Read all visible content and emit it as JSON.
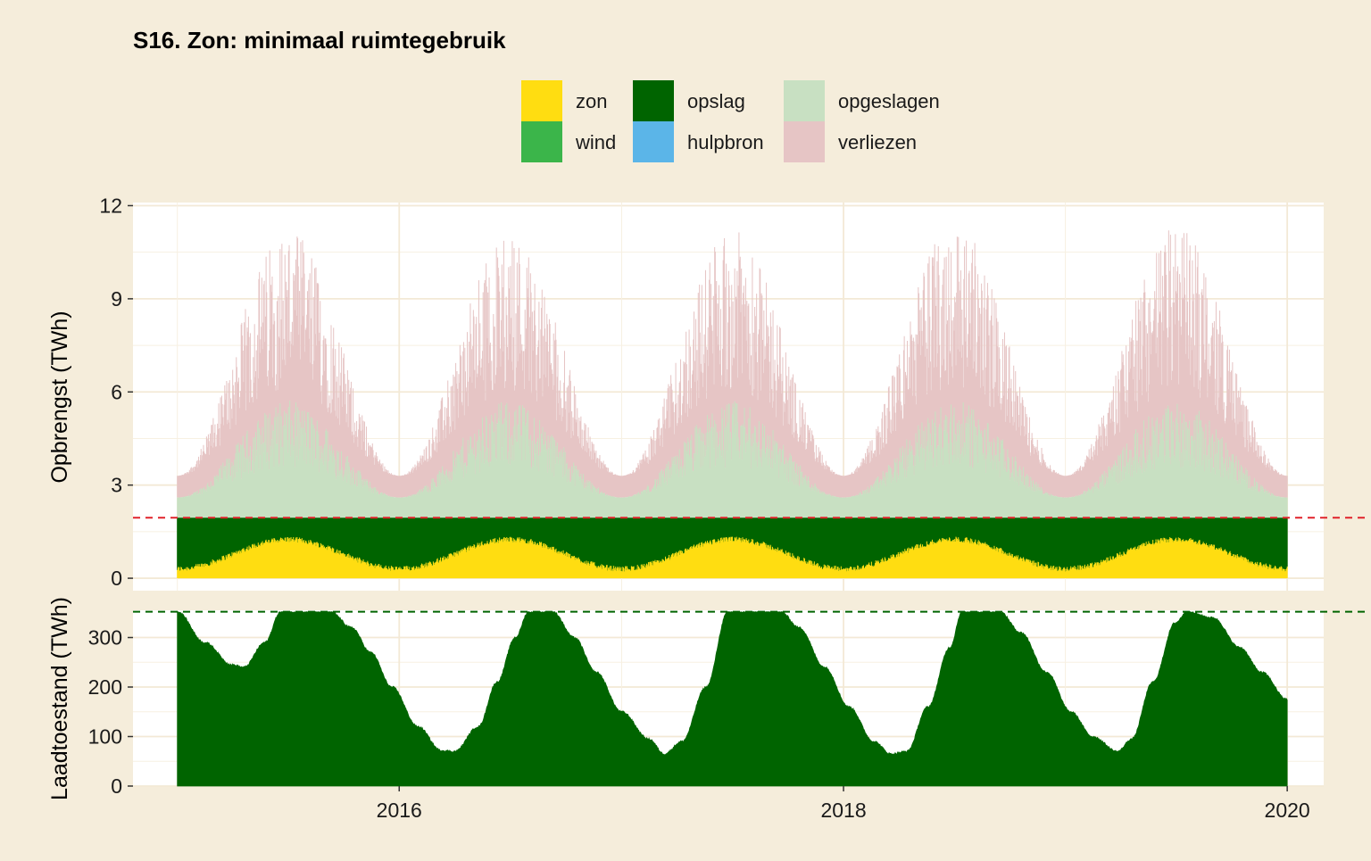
{
  "chart_data": {
    "type": "area",
    "title": "S16. Zon: minimaal ruimtegebruik",
    "xlabel": "",
    "x_ticks": [
      "2016",
      "2018",
      "2020"
    ],
    "x_range": [
      "2014-10-20",
      "2020-03-01"
    ],
    "data_range": [
      "2015-01-01",
      "2020-01-01"
    ],
    "legend": {
      "position": "top",
      "items": [
        {
          "name": "zon",
          "color": "#FFDD11"
        },
        {
          "name": "wind",
          "color": "#3BB54A"
        },
        {
          "name": "opslag",
          "color": "#006400"
        },
        {
          "name": "hulpbron",
          "color": "#5BB5E8"
        },
        {
          "name": "opgeslagen",
          "color": "#C8E0C2"
        },
        {
          "name": "verliezen",
          "color": "#E6C5C5"
        }
      ]
    },
    "panels": [
      {
        "ylabel": "Opbrengst (TWh)",
        "ylim": [
          -0.4,
          12.1
        ],
        "y_ticks": [
          0,
          3,
          6,
          9,
          12
        ],
        "demand_line": {
          "value": 1.95,
          "color": "#E0222A",
          "style": "dashed"
        },
        "series": [
          {
            "name": "zon",
            "note": "daily solar contribution below demand",
            "winter_min": 0.3,
            "summer_max": 1.25
          },
          {
            "name": "opslag",
            "note": "fills up to demand level",
            "value": 1.95
          },
          {
            "name": "opgeslagen",
            "winter_top": 2.6,
            "summer_top": 5.0
          },
          {
            "name": "verliezen",
            "winter_top": 3.3,
            "summer_peak": 11.3
          }
        ],
        "summer_peaks": [
          {
            "year": 2015,
            "peak": 11.3
          },
          {
            "year": 2016,
            "peak": 11.1
          },
          {
            "year": 2017,
            "peak": 11.2
          },
          {
            "year": 2018,
            "peak": 11.5
          },
          {
            "year": 2019,
            "peak": 11.3
          }
        ]
      },
      {
        "ylabel": "Laadtoestand (TWh)",
        "ylim": [
          0,
          355
        ],
        "y_ticks": [
          0,
          100,
          200,
          300
        ],
        "capacity_line": {
          "value": 352,
          "color": "#006400",
          "style": "dashed"
        },
        "series": [
          {
            "name": "opslag",
            "x": [
              "2015-01-01",
              "2015-02-15",
              "2015-04-01",
              "2015-04-20",
              "2015-05-25",
              "2015-06-20",
              "2015-09-10",
              "2015-10-15",
              "2015-11-15",
              "2015-12-20",
              "2016-02-01",
              "2016-03-10",
              "2016-04-01",
              "2016-05-10",
              "2016-06-10",
              "2016-07-10",
              "2016-08-01",
              "2016-09-10",
              "2016-10-15",
              "2016-11-20",
              "2017-01-01",
              "2017-02-15",
              "2017-03-12",
              "2017-04-10",
              "2017-05-20",
              "2017-06-25",
              "2017-09-20",
              "2017-10-20",
              "2017-12-01",
              "2018-01-10",
              "2018-02-20",
              "2018-03-20",
              "2018-04-15",
              "2018-05-20",
              "2018-06-25",
              "2018-07-15",
              "2018-09-15",
              "2018-10-20",
              "2018-12-01",
              "2019-01-10",
              "2019-02-15",
              "2019-03-28",
              "2019-04-20",
              "2019-05-25",
              "2019-07-01",
              "2019-07-20",
              "2019-09-01",
              "2019-10-15",
              "2019-11-20",
              "2020-01-01"
            ],
            "values": [
              352,
              290,
              245,
              240,
              290,
              352,
              352,
              320,
              270,
              200,
              120,
              72,
              70,
              120,
              210,
              300,
              352,
              352,
              300,
              230,
              150,
              95,
              65,
              90,
              200,
              352,
              352,
              320,
              240,
              160,
              90,
              65,
              70,
              160,
              280,
              352,
              352,
              310,
              230,
              150,
              100,
              70,
              95,
              210,
              330,
              352,
              340,
              280,
              230,
              175
            ]
          }
        ]
      }
    ]
  }
}
